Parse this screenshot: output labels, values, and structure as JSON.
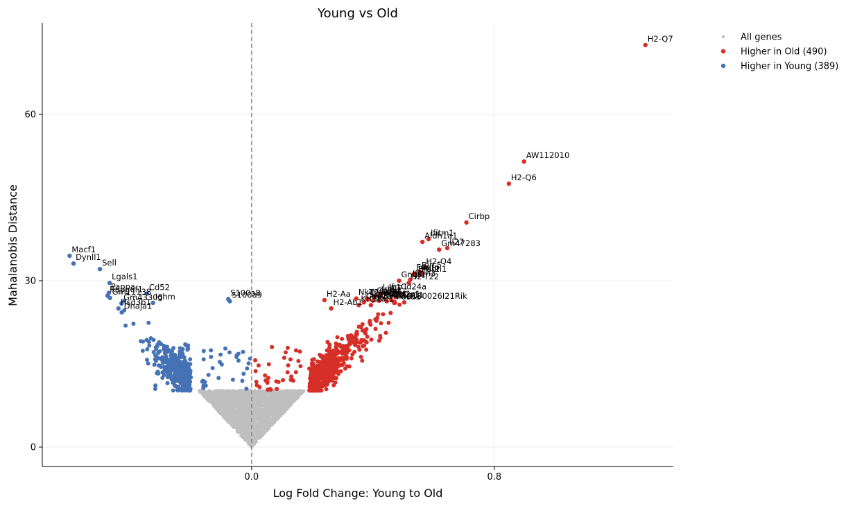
{
  "chart_data": {
    "type": "scatter",
    "title": "Young vs Old",
    "xlabel": "Log Fold Change: Young to Old",
    "ylabel": "Mahalanobis Distance",
    "xlim": [
      -0.69,
      1.39
    ],
    "ylim": [
      -3.5,
      76.5
    ],
    "xticks": [
      0.0,
      0.8
    ],
    "xtick_labels": [
      "0.0",
      "0.8"
    ],
    "yticks": [
      0,
      30,
      60
    ],
    "ytick_labels": [
      "0",
      "30",
      "60"
    ],
    "grid": true,
    "zero_line": "dashed vertical line at x = 0",
    "legend_position": "right, outside plot",
    "colors": {
      "all": "#bfbfbf",
      "old": "#d62f27",
      "young": "#4472b4",
      "zero_line": "#888888"
    },
    "legend": [
      {
        "key": "all",
        "label": "All genes"
      },
      {
        "key": "old",
        "label": "Higher in Old (490)"
      },
      {
        "key": "young",
        "label": "Higher in Young (389)"
      }
    ],
    "series": [
      {
        "name": "All genes",
        "description": "non-significant genes filling a V-shaped cone from (0,0) up to |x|≈0.17 at distance ≈10"
      },
      {
        "name": "Higher in Old (490)",
        "description": "significant genes with positive log fold change"
      },
      {
        "name": "Higher in Young (389)",
        "description": "significant genes with negative log fold change"
      }
    ],
    "labeled_points": [
      {
        "gene": "H2-Q7",
        "x": 1.298,
        "y": 72.5,
        "group": "old"
      },
      {
        "gene": "AW112010",
        "x": 0.898,
        "y": 51.5,
        "group": "old"
      },
      {
        "gene": "H2-Q6",
        "x": 0.848,
        "y": 47.5,
        "group": "old"
      },
      {
        "gene": "Cirbp",
        "x": 0.708,
        "y": 40.5,
        "group": "old"
      },
      {
        "gene": "Ifitm1",
        "x": 0.583,
        "y": 37.5,
        "group": "old"
      },
      {
        "gene": "Aldh1a1",
        "x": 0.563,
        "y": 37.0,
        "group": "old"
      },
      {
        "gene": "Il27",
        "x": 0.645,
        "y": 35.9,
        "group": "old"
      },
      {
        "gene": "Gm47283",
        "x": 0.618,
        "y": 35.6,
        "group": "old"
      },
      {
        "gene": "H2-Q4",
        "x": 0.568,
        "y": 32.4,
        "group": "old"
      },
      {
        "gene": "Birc5",
        "x": 0.553,
        "y": 31.7,
        "group": "old"
      },
      {
        "gene": "Fos",
        "x": 0.536,
        "y": 31.3,
        "group": "old"
      },
      {
        "gene": "Igtp",
        "x": 0.561,
        "y": 31.3,
        "group": "old"
      },
      {
        "gene": "Hsph1",
        "x": 0.553,
        "y": 31.0,
        "group": "old"
      },
      {
        "gene": "Erdr1",
        "x": 0.542,
        "y": 31.0,
        "group": "old"
      },
      {
        "gene": "Ifitm3",
        "x": 0.523,
        "y": 30.2,
        "group": "old"
      },
      {
        "gene": "H2-T22",
        "x": 0.518,
        "y": 29.6,
        "group": "old"
      },
      {
        "gene": "Gngt1",
        "x": 0.486,
        "y": 30.0,
        "group": "old"
      },
      {
        "gene": "Cd24a",
        "x": 0.485,
        "y": 27.8,
        "group": "old"
      },
      {
        "gene": "Ifrp1",
        "x": 0.446,
        "y": 27.8,
        "group": "old"
      },
      {
        "gene": "Lsp1",
        "x": 0.425,
        "y": 27.7,
        "group": "old"
      },
      {
        "gene": "Nkg7",
        "x": 0.345,
        "y": 26.8,
        "group": "old"
      },
      {
        "gene": "H2-Aa",
        "x": 0.24,
        "y": 26.5,
        "group": "old"
      },
      {
        "gene": "Cd8b1",
        "x": 0.405,
        "y": 27.1,
        "group": "old"
      },
      {
        "gene": "Ly6a",
        "x": 0.42,
        "y": 27.3,
        "group": "old"
      },
      {
        "gene": "Tnfrsf4",
        "x": 0.38,
        "y": 26.8,
        "group": "old"
      },
      {
        "gene": "Ifngr",
        "x": 0.44,
        "y": 26.7,
        "group": "old"
      },
      {
        "gene": "Bcl2a1",
        "x": 0.46,
        "y": 26.5,
        "group": "old"
      },
      {
        "gene": "Coro1a",
        "x": 0.383,
        "y": 26.6,
        "group": "old"
      },
      {
        "gene": "Cd74",
        "x": 0.4,
        "y": 26.4,
        "group": "old"
      },
      {
        "gene": "Prdm1",
        "x": 0.42,
        "y": 26.4,
        "group": "old"
      },
      {
        "gene": "S100a11",
        "x": 0.445,
        "y": 26.3,
        "group": "old"
      },
      {
        "gene": "Zbp1",
        "x": 0.47,
        "y": 26.2,
        "group": "old"
      },
      {
        "gene": "C130026I21Rik",
        "x": 0.503,
        "y": 26.1,
        "group": "old"
      },
      {
        "gene": "Pdcd1",
        "x": 0.47,
        "y": 26.0,
        "group": "old"
      },
      {
        "gene": "Ctla2a",
        "x": 0.37,
        "y": 26.1,
        "group": "old"
      },
      {
        "gene": "Krt18",
        "x": 0.353,
        "y": 25.6,
        "group": "old"
      },
      {
        "gene": "Stat1",
        "x": 0.393,
        "y": 25.6,
        "group": "old"
      },
      {
        "gene": "H2-Ab1",
        "x": 0.262,
        "y": 25.0,
        "group": "old"
      },
      {
        "gene": "S100a8",
        "x": -0.077,
        "y": 26.7,
        "group": "young"
      },
      {
        "gene": "S100a9",
        "x": -0.072,
        "y": 26.3,
        "group": "young"
      },
      {
        "gene": "Cd52",
        "x": -0.345,
        "y": 27.7,
        "group": "young"
      },
      {
        "gene": "Ighm",
        "x": -0.325,
        "y": 26.0,
        "group": "young"
      },
      {
        "gene": "Gm43305",
        "x": -0.429,
        "y": 25.9,
        "group": "young"
      },
      {
        "gene": "Hsd3b1",
        "x": -0.439,
        "y": 25.0,
        "group": "young"
      },
      {
        "gene": "Dnaja1",
        "x": -0.428,
        "y": 24.3,
        "group": "young"
      },
      {
        "gene": "Lgals1",
        "x": -0.468,
        "y": 29.6,
        "group": "young"
      },
      {
        "gene": "Sell",
        "x": -0.5,
        "y": 32.1,
        "group": "young"
      },
      {
        "gene": "Dynll1",
        "x": -0.587,
        "y": 33.1,
        "group": "young"
      },
      {
        "gene": "Macf1",
        "x": -0.6,
        "y": 34.5,
        "group": "young"
      },
      {
        "gene": "Pappa",
        "x": -0.471,
        "y": 27.8,
        "group": "young"
      },
      {
        "gene": "Rapgef1",
        "x": -0.475,
        "y": 27.3,
        "group": "young"
      },
      {
        "gene": "Gm11138",
        "x": -0.467,
        "y": 26.9,
        "group": "young"
      }
    ]
  }
}
